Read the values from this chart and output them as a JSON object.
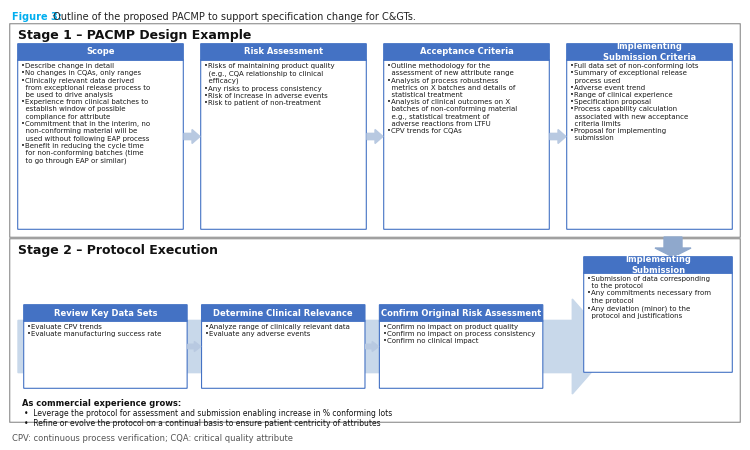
{
  "title_fig3": "Figure 3:",
  "title_rest": " Outline of the proposed PACMP to support specification change for C&GTs.",
  "stage1_title": "Stage 1 – PACMP Design Example",
  "stage2_title": "Stage 2 – Protocol Execution",
  "footer": "CPV: continuous process verification; CQA: critical quality attribute",
  "stage1_boxes": [
    {
      "header": "Scope",
      "bullets": "•Describe change in detail\n•No changes in CQAs, only ranges\n•Clinically relevant data derived\n  from exceptional release process to\n  be used to drive analysis\n•Experience from clinical batches to\n  establish window of possible\n  compliance for attribute\n•Commitment that in the interim, no\n  non-conforming material will be\n  used without following EAP process\n•Benefit in reducing the cycle time\n  for non-conforming batches (time\n  to go through EAP or similar)"
    },
    {
      "header": "Risk Assessment",
      "bullets": "•Risks of maintaining product quality\n  (e.g., CQA relationship to clinical\n  efficacy)\n•Any risks to process consistency\n•Risk of increase in adverse events\n•Risk to patient of non-treatment"
    },
    {
      "header": "Acceptance Criteria",
      "bullets": "•Outline methodology for the\n  assessment of new attribute range\n•Analysis of process robustness\n  metrics on X batches and details of\n  statistical treatment\n•Analysis of clinical outcomes on X\n  batches of non-conforming material\n  e.g., statistical treatment of\n  adverse reactions from LTFU\n•CPV trends for CQAs"
    },
    {
      "header": "Implementing\nSubmission Criteria",
      "bullets": "•Full data set of non-conforming lots\n•Summary of exceptional release\n  process used\n•Adverse event trend\n•Range of clinical experience\n•Specification proposal\n•Process capability calculation\n  associated with new acceptance\n  criteria limits\n•Proposal for implementing\n  submission"
    }
  ],
  "stage2_boxes": [
    {
      "header": "Review Key Data Sets",
      "bullets": "•Evaluate CPV trends\n•Evaluate manufacturing success rate"
    },
    {
      "header": "Determine Clinical Relevance",
      "bullets": "•Analyze range of clinically relevant data\n•Evaluate any adverse events"
    },
    {
      "header": "Confirm Original Risk Assessment",
      "bullets": "•Confirm no impact on product quality\n•Confirm no impact on process consistency\n•Confirm no clinical impact"
    }
  ],
  "impl_submission2": {
    "header": "Implementing\nSubmission",
    "bullets": "•Submission of data corresponding\n  to the protocol\n•Any commitments necessary from\n  the protocol\n•Any deviation (minor) to the\n  protocol and justifications"
  },
  "commercial_title": "As commercial experience grows:",
  "commercial_bullets": [
    "Leverage the protocol for assessment and submission enabling increase in % conforming lots",
    "Refine or evolve the protocol on a continual basis to ensure patient centricity of attributes"
  ],
  "header_bg": "#4472C4",
  "box_border": "#4472C4",
  "arrow_color": "#B8C9E1",
  "down_arrow_color": "#8FA8CC",
  "fig3_color": "#00AEEF",
  "footer_color": "#555555",
  "stage_title_size": 9,
  "header_fs": 6.0,
  "bullet_fs": 5.0
}
